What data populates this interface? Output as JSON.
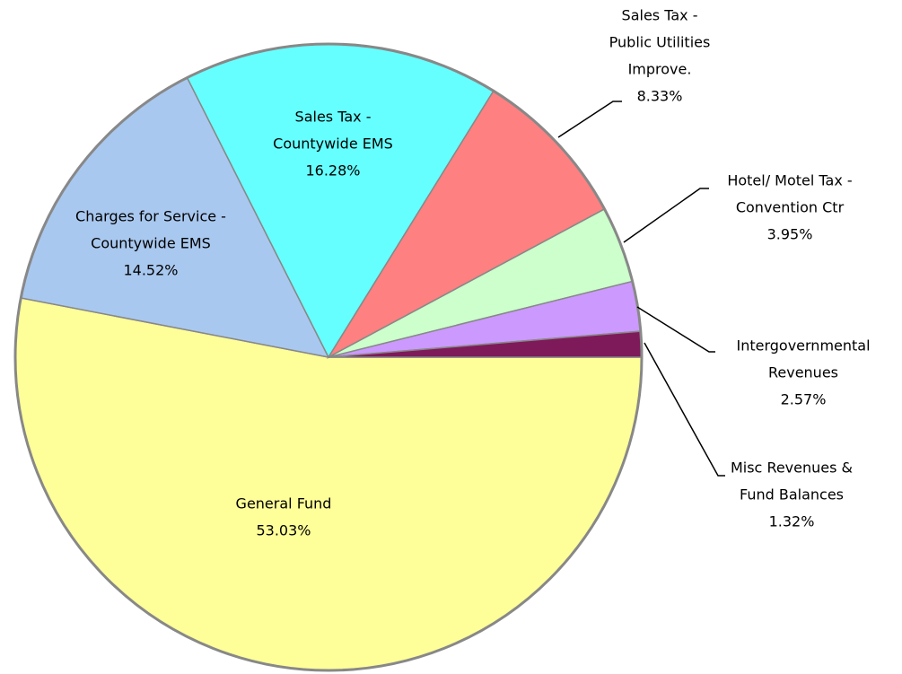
{
  "chart_data": {
    "type": "pie",
    "categories": [
      [
        "General Fund"
      ],
      [
        "Charges for Service -",
        "Countywide EMS"
      ],
      [
        "Sales Tax -",
        "Countywide EMS"
      ],
      [
        "Sales Tax -",
        "Public Utilities",
        "Improve."
      ],
      [
        "Hotel/ Motel Tax -",
        "Convention Ctr"
      ],
      [
        "Intergovernmental",
        "Revenues"
      ],
      [
        "Misc Revenues &",
        "Fund Balances"
      ]
    ],
    "values": [
      53.03,
      14.52,
      16.28,
      8.33,
      3.95,
      2.57,
      1.32
    ],
    "value_labels": [
      "53.03%",
      "14.52%",
      "16.28%",
      "8.33%",
      "3.95%",
      "2.57%",
      "1.32%"
    ],
    "colors": [
      "#ffff99",
      "#a9c8ef",
      "#66ffff",
      "#ff8080",
      "#ccffcc",
      "#cc99ff",
      "#7f1a5a"
    ]
  }
}
